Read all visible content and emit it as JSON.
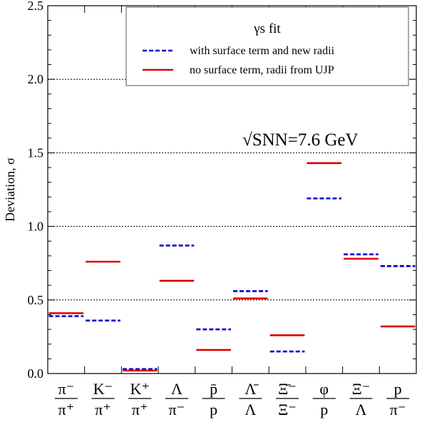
{
  "chart_data": {
    "type": "scatter",
    "ylabel": "Deviation, σ",
    "ylim": [
      0,
      2.5
    ],
    "yticks": [
      0.0,
      0.5,
      1.0,
      1.5,
      2.0,
      2.5
    ],
    "ytick_labels": [
      "0.0",
      "0.5",
      "1.0",
      "1.5",
      "2.0",
      "2.5"
    ],
    "grid_y": [
      0.5,
      1.0,
      1.5,
      2.0
    ],
    "categories": [
      {
        "num": "π⁻",
        "den": "π⁺"
      },
      {
        "num": "K⁻",
        "den": "π⁺"
      },
      {
        "num": "K⁺",
        "den": "π⁺"
      },
      {
        "num": "Λ",
        "den": "π⁻"
      },
      {
        "num": "p̄",
        "den": "p"
      },
      {
        "num": "Λ̄",
        "den": "Λ"
      },
      {
        "num": "Ξ̄⁻",
        "den": "Ξ⁻"
      },
      {
        "num": "φ",
        "den": "p"
      },
      {
        "num": "Ξ⁻",
        "den": "Λ"
      },
      {
        "num": "p",
        "den": "π⁻"
      }
    ],
    "series": [
      {
        "name": "with surface term and new radii",
        "color": "#0000cc",
        "style": "dashed",
        "values": [
          0.39,
          0.36,
          0.03,
          0.87,
          0.3,
          0.56,
          0.15,
          1.19,
          0.81,
          0.73
        ]
      },
      {
        "name": "no surface term, radii from UJP",
        "color": "#dd0000",
        "style": "solid",
        "values": [
          0.41,
          0.76,
          0.02,
          0.63,
          0.16,
          0.51,
          0.26,
          1.43,
          0.78,
          0.32
        ]
      }
    ],
    "legend": {
      "title": "γs fit",
      "placement": "top-right"
    },
    "annotation": "√SNN=7.6 GeV"
  }
}
